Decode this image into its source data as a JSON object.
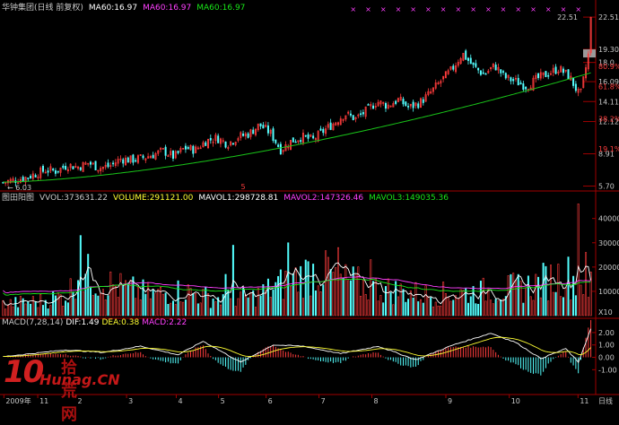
{
  "colors": {
    "up": "#ff3c3c",
    "down": "#54ffff",
    "ma60": "#19c519",
    "text": "#c8c8c8",
    "axis": "#a00000",
    "grid": "#5a0000",
    "dif": "#ffffff",
    "dea": "#ffff33",
    "vol_ma1": "#ffffff",
    "vol_ma2": "#ff40ff",
    "vol_ma3": "#19e619",
    "macd_label": "#ff40ff"
  },
  "header": {
    "title": "华钟集团(日线 前复权)",
    "ma1": "MA60:16.97",
    "ma2": "MA60:16.97",
    "ma3": "MA60:16.97"
  },
  "volume_header": {
    "title": "图田阳图",
    "vvol": "VVOL:373631.22",
    "volume": "VOLUME:291121.00",
    "mavol1": "MAVOL1:298728.81",
    "mavol2": "MAVOL2:147326.46",
    "mavol3": "MAVOL3:149035.36"
  },
  "macd_header": {
    "title": "MACD(7,28,14)",
    "dif": "DIF:1.49",
    "dea": "DEA:0.38",
    "macd": "MACD:2.22"
  },
  "chart_data": [
    {
      "type": "candlestick",
      "panel": "price",
      "y_ticks": [
        "22.51",
        "19.30",
        "18.0",
        "16.09",
        "14.11",
        "12.12",
        "8.91",
        "5.70"
      ],
      "pct_ticks": [
        "80.9%",
        "61.8%",
        "38.2%",
        "19.1%"
      ],
      "y_range": [
        5.3,
        23.5
      ],
      "low_label": "6.03",
      "high_label": "22.51",
      "marker": "5",
      "ma60_start": 6.1,
      "ma60_end": 16.97,
      "price_path": [
        6.05,
        6.3,
        6.5,
        6.9,
        7.3,
        7.2,
        7.8,
        7.6,
        8.0,
        7.5,
        7.7,
        8.4,
        8.3,
        8.5,
        8.8,
        9.2,
        8.6,
        9.5,
        9.3,
        10.2,
        10.5,
        9.9,
        10.6,
        10.9,
        11.8,
        11.0,
        9.3,
        10.2,
        10.6,
        10.3,
        11.2,
        12.0,
        12.9,
        12.4,
        13.2,
        14.1,
        13.7,
        14.3,
        13.5,
        14.0,
        15.0,
        16.2,
        17.3,
        18.9,
        17.6,
        16.8,
        17.7,
        16.5,
        16.1,
        15.6,
        16.4,
        16.9,
        17.4,
        16.6,
        14.6,
        20.0
      ]
    },
    {
      "type": "bar",
      "panel": "volume",
      "y_ticks": [
        "40000",
        "30000",
        "20000",
        "10000"
      ],
      "unit": "X10",
      "y_range": [
        0,
        48000
      ],
      "profile": [
        [
          0,
          5500
        ],
        [
          15,
          7000
        ],
        [
          26,
          10000
        ],
        [
          30,
          21000
        ],
        [
          45,
          14000
        ],
        [
          60,
          10000
        ],
        [
          72,
          12000
        ],
        [
          85,
          8000
        ],
        [
          100,
          9000
        ],
        [
          115,
          17000
        ],
        [
          125,
          22000
        ],
        [
          135,
          17000
        ],
        [
          150,
          13000
        ],
        [
          170,
          10000
        ],
        [
          185,
          11000
        ],
        [
          200,
          12500
        ],
        [
          210,
          14000
        ],
        [
          225,
          20000
        ],
        [
          232,
          14000
        ]
      ],
      "spikes": [
        [
          31,
          33000
        ],
        [
          89,
          17000
        ],
        [
          92,
          29000
        ],
        [
          114,
          30000
        ],
        [
          130,
          24000
        ],
        [
          134,
          28000
        ],
        [
          147,
          23000
        ],
        [
          230,
          46000
        ],
        [
          233,
          26000
        ]
      ],
      "ma_levels": {
        "ma1": 11000,
        "ma2": 14500,
        "ma3": 12500
      }
    },
    {
      "type": "bar",
      "panel": "macd",
      "y_ticks": [
        "2.00",
        "1.00",
        "0.00",
        "-1.00"
      ],
      "y_range": [
        -1.7,
        2.5
      ],
      "dif_path": [
        [
          0,
          0.05
        ],
        [
          25,
          0.6
        ],
        [
          40,
          0.4
        ],
        [
          55,
          0.9
        ],
        [
          70,
          0.2
        ],
        [
          80,
          1.3
        ],
        [
          95,
          -0.4
        ],
        [
          108,
          1.0
        ],
        [
          120,
          0.9
        ],
        [
          135,
          0.3
        ],
        [
          150,
          0.9
        ],
        [
          165,
          -0.2
        ],
        [
          180,
          1.0
        ],
        [
          195,
          1.95
        ],
        [
          205,
          1.2
        ],
        [
          215,
          -0.1
        ],
        [
          225,
          0.7
        ],
        [
          230,
          -0.4
        ],
        [
          235,
          2.3
        ]
      ]
    }
  ],
  "time_axis": {
    "labels": [
      "2009年",
      "11",
      "2",
      "3",
      "4",
      "5",
      "6",
      "7",
      "8",
      "9",
      "10",
      "11"
    ],
    "footer": "日线"
  },
  "watermark": {
    "brand": "10",
    "name": "拾荒网",
    "url": "Hunag.CN"
  }
}
